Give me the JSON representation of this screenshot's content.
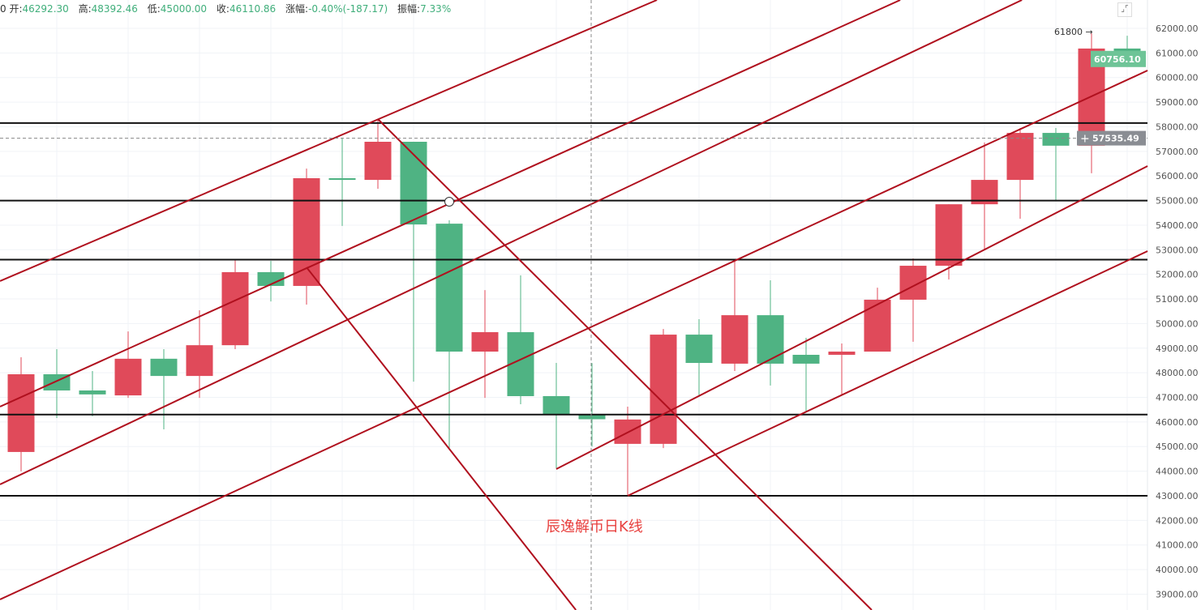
{
  "header": {
    "prefix": "0",
    "open_label": "开:",
    "open": "46292.30",
    "high_label": "高:",
    "high": "48392.46",
    "low_label": "低:",
    "low": "45000.00",
    "close_label": "收:",
    "close": "46110.86",
    "change_label": "涨幅:",
    "change": "-0.40%(-187.17)",
    "amplitude_label": "振幅:",
    "amplitude": "7.33%"
  },
  "watermark": "辰逸解币日K线",
  "annotation": "61800 →",
  "fullscreen_icon": "collapse-icon",
  "colors": {
    "up": "#e04a5a",
    "down": "#4fb383",
    "trendline": "#b0101e",
    "level": "#111111",
    "crosshair_label": "#8a8d93",
    "last_price_label": "#6ec497"
  },
  "chart_data": {
    "type": "candlestick",
    "ylim": [
      38356,
      63153
    ],
    "y_ticks": [
      39000,
      40000,
      41000,
      42000,
      43000,
      44000,
      45000,
      46000,
      47000,
      48000,
      49000,
      50000,
      51000,
      52000,
      53000,
      54000,
      55000,
      56000,
      57000,
      58000,
      59000,
      60000,
      61000,
      62000
    ],
    "candles": [
      {
        "o": 44780,
        "h": 48630,
        "l": 43990,
        "c": 47940
      },
      {
        "o": 47940,
        "h": 48960,
        "l": 46160,
        "c": 47280
      },
      {
        "o": 47280,
        "h": 48070,
        "l": 46230,
        "c": 47120
      },
      {
        "o": 47080,
        "h": 49680,
        "l": 46980,
        "c": 48570
      },
      {
        "o": 48570,
        "h": 48960,
        "l": 45700,
        "c": 47870
      },
      {
        "o": 47870,
        "h": 50540,
        "l": 46980,
        "c": 49120
      },
      {
        "o": 49120,
        "h": 52620,
        "l": 48960,
        "c": 52090
      },
      {
        "o": 52090,
        "h": 52550,
        "l": 50900,
        "c": 51530
      },
      {
        "o": 51530,
        "h": 56300,
        "l": 50770,
        "c": 55910
      },
      {
        "o": 55910,
        "h": 57550,
        "l": 53970,
        "c": 55840
      },
      {
        "o": 55840,
        "h": 58300,
        "l": 55480,
        "c": 57390
      },
      {
        "o": 57390,
        "h": 57390,
        "l": 47640,
        "c": 54030
      },
      {
        "o": 54060,
        "h": 54200,
        "l": 44940,
        "c": 48860
      },
      {
        "o": 48860,
        "h": 51360,
        "l": 46980,
        "c": 49650
      },
      {
        "o": 49650,
        "h": 51960,
        "l": 46720,
        "c": 47050
      },
      {
        "o": 47050,
        "h": 48400,
        "l": 44120,
        "c": 46290
      },
      {
        "o": 46292.3,
        "h": 48392.46,
        "l": 45000.0,
        "c": 46110.86
      },
      {
        "o": 45110,
        "h": 46620,
        "l": 43000,
        "c": 46100
      },
      {
        "o": 45110,
        "h": 49780,
        "l": 44940,
        "c": 49550
      },
      {
        "o": 49550,
        "h": 50180,
        "l": 47020,
        "c": 48400
      },
      {
        "o": 48370,
        "h": 52620,
        "l": 48070,
        "c": 50340
      },
      {
        "o": 50340,
        "h": 51760,
        "l": 47480,
        "c": 48370
      },
      {
        "o": 48730,
        "h": 49420,
        "l": 46390,
        "c": 48370
      },
      {
        "o": 48730,
        "h": 49190,
        "l": 47080,
        "c": 48860
      },
      {
        "o": 48860,
        "h": 51460,
        "l": 48860,
        "c": 50970
      },
      {
        "o": 50970,
        "h": 52650,
        "l": 49260,
        "c": 52350
      },
      {
        "o": 52350,
        "h": 54850,
        "l": 51790,
        "c": 54850
      },
      {
        "o": 54850,
        "h": 57360,
        "l": 53010,
        "c": 55840
      },
      {
        "o": 55840,
        "h": 57950,
        "l": 54260,
        "c": 57750
      },
      {
        "o": 57750,
        "h": 57950,
        "l": 55020,
        "c": 57230
      },
      {
        "o": 57230,
        "h": 61800,
        "l": 56110,
        "c": 61180
      },
      {
        "o": 61180,
        "h": 61700,
        "l": 60700,
        "c": 60756.1
      }
    ],
    "horizontal_levels": [
      58150,
      55000,
      52600,
      46300,
      43000
    ],
    "trendlines": [
      {
        "from": [
          -0.59,
          51726
        ],
        "to": [
          17.82,
          63153
        ]
      },
      {
        "from": [
          -0.59,
          46622
        ],
        "to": [
          24.64,
          63153
        ]
      },
      {
        "from": [
          -0.59,
          43460
        ],
        "to": [
          28.05,
          63153
        ]
      },
      {
        "from": [
          -0.59,
          38784
        ],
        "to": [
          31.57,
          60288
        ]
      },
      {
        "from": [
          15.0,
          44086
        ],
        "to": [
          31.57,
          56402
        ]
      },
      {
        "from": [
          17.0,
          43000
        ],
        "to": [
          31.57,
          52944
        ]
      },
      {
        "from": [
          10.0,
          58312
        ],
        "to": [
          23.84,
          38356
        ]
      },
      {
        "from": [
          8.0,
          52286
        ],
        "to": [
          15.55,
          38356
        ]
      }
    ],
    "marker": {
      "index": 12,
      "price": 54953
    },
    "crosshair": {
      "index": 16,
      "price": 57535.49,
      "price_label": "57535.49"
    },
    "last_price": {
      "price": 60756.1,
      "label": "60756.10"
    }
  }
}
